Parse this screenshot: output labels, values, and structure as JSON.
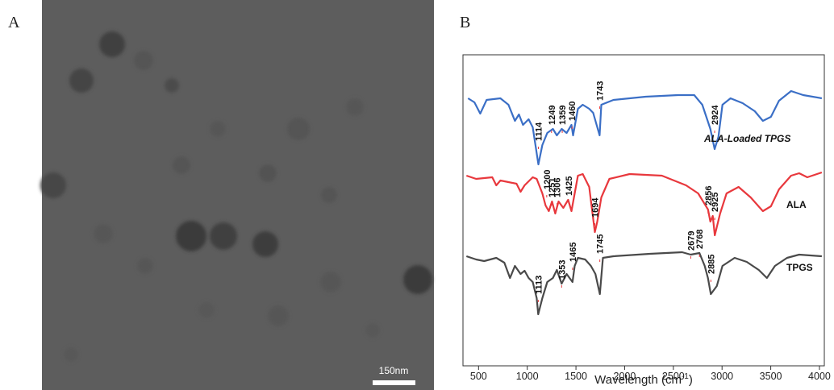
{
  "panel_a": {
    "label": "A",
    "scale_bar": "150nm"
  },
  "chart_data": {
    "type": "line",
    "panel_label": "B",
    "x_label": {
      "text": "Wavelength (cm",
      "superscript": "-1",
      "suffix": ")"
    },
    "xlim": [
      340,
      4050
    ],
    "ylim": [
      0,
      386
    ],
    "xticks": [
      500,
      1000,
      1500,
      2000,
      2500,
      3000,
      3500,
      4000
    ],
    "series": [
      {
        "name": "ALA-Loaded TPGS",
        "color": "#3b6fc6",
        "x": [
          392,
          458,
          517,
          583,
          724,
          807,
          873,
          915,
          956,
          1014,
          1056,
          1114,
          1155,
          1205,
          1263,
          1304,
          1354,
          1404,
          1454,
          1470,
          1520,
          1570,
          1636,
          1677,
          1743,
          1760,
          1885,
          2216,
          2548,
          2714,
          2797,
          2880,
          2924,
          2963,
          3004,
          3087,
          3211,
          3336,
          3419,
          3502,
          3585,
          3709,
          3833,
          4024
        ],
        "values": [
          332,
          327,
          313,
          330,
          332,
          324,
          304,
          312,
          299,
          306,
          296,
          250,
          274,
          289,
          294,
          286,
          294,
          289,
          299,
          286,
          319,
          324,
          319,
          314,
          286,
          324,
          330,
          334,
          336,
          336,
          324,
          294,
          269,
          284,
          324,
          332,
          326,
          316,
          304,
          309,
          329,
          341,
          336,
          332
        ],
        "peaks": [
          1114,
          1249,
          1359,
          1460,
          1743,
          2924
        ]
      },
      {
        "name": "ALA",
        "color": "#e8383d",
        "x": [
          376,
          475,
          641,
          682,
          724,
          807,
          890,
          931,
          973,
          1056,
          1097,
          1155,
          1188,
          1221,
          1254,
          1287,
          1321,
          1370,
          1420,
          1454,
          1487,
          1520,
          1570,
          1636,
          1694,
          1719,
          1760,
          1843,
          2051,
          2382,
          2631,
          2755,
          2856,
          2880,
          2905,
          2925,
          2980,
          3046,
          3170,
          3294,
          3419,
          3502,
          3585,
          3709,
          3792,
          3875,
          4024
        ],
        "values": [
          236,
          232,
          234,
          224,
          230,
          228,
          226,
          216,
          224,
          234,
          232,
          214,
          199,
          192,
          204,
          189,
          204,
          196,
          206,
          192,
          214,
          236,
          238,
          222,
          166,
          179,
          209,
          232,
          238,
          236,
          224,
          214,
          194,
          179,
          186,
          162,
          189,
          214,
          222,
          209,
          192,
          198,
          219,
          236,
          239,
          234,
          240
        ],
        "peaks": [
          1200,
          1251,
          1306,
          1425,
          1694,
          2856,
          2925
        ]
      },
      {
        "name": "TPGS",
        "color": "#4a4a4a",
        "x": [
          376,
          475,
          558,
          682,
          765,
          823,
          873,
          931,
          973,
          1014,
          1056,
          1097,
          1113,
          1155,
          1205,
          1263,
          1304,
          1353,
          1404,
          1465,
          1487,
          1520,
          1595,
          1653,
          1700,
          1745,
          1777,
          1885,
          2258,
          2590,
          2679,
          2768,
          2822,
          2855,
          2885,
          2946,
          3004,
          3129,
          3253,
          3377,
          3460,
          3543,
          3667,
          3792,
          4024
        ],
        "values": [
          136,
          132,
          130,
          134,
          128,
          109,
          124,
          114,
          118,
          109,
          104,
          84,
          64,
          84,
          104,
          109,
          119,
          102,
          114,
          104,
          124,
          134,
          132,
          124,
          114,
          89,
          134,
          136,
          139,
          141,
          138,
          140,
          124,
          109,
          89,
          99,
          124,
          134,
          129,
          119,
          109,
          124,
          134,
          138,
          136
        ],
        "peaks": [
          1113,
          1353,
          1465,
          1745,
          2679,
          2768,
          2885
        ]
      }
    ]
  }
}
